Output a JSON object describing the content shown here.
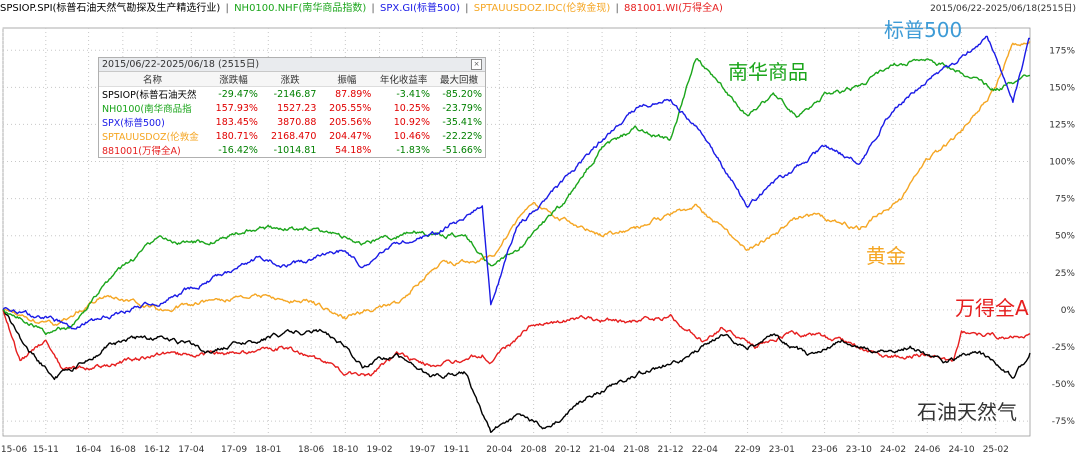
{
  "header": {
    "date_range": "2015/06/22-2025/06/18(2515日)",
    "legend": [
      {
        "text": "SPSIOP.SPI(标普石油天然气勘探及生产精选行业)",
        "color": "#000000"
      },
      {
        "text": "NH0100.NHF(南华商品指数)",
        "color": "#1aa51a"
      },
      {
        "text": "SPX.GI(标普500)",
        "color": "#1a1ae6"
      },
      {
        "text": "SPTAUUSDOZ.IDC(伦敦金现)",
        "color": "#f5a623"
      },
      {
        "text": "881001.WI(万得全A)",
        "color": "#e61e1e"
      }
    ],
    "separator": "|"
  },
  "stats": {
    "title": "2015/06/22-2025/06/18 (2515日)",
    "columns": [
      "名称",
      "涨跌幅",
      "涨跌",
      "振幅",
      "年化收益率",
      "最大回撤"
    ],
    "rows": [
      {
        "name": "SPSIOP(标普石油天然",
        "color": "#000000",
        "values": [
          "-29.47%",
          "-2146.87",
          "87.89%",
          "-3.41%",
          "-85.20%"
        ]
      },
      {
        "name": "NH0100(南华商品指",
        "color": "#1aa51a",
        "values": [
          "157.93%",
          "1527.23",
          "205.55%",
          "10.25%",
          "-23.79%"
        ]
      },
      {
        "name": "SPX(标普500)",
        "color": "#1a1ae6",
        "values": [
          "183.45%",
          "3870.88",
          "205.56%",
          "10.92%",
          "-35.41%"
        ]
      },
      {
        "name": "SPTAUUSDOZ(伦敦金",
        "color": "#f5a623",
        "values": [
          "180.71%",
          "2168.470",
          "204.47%",
          "10.46%",
          "-22.22%"
        ]
      },
      {
        "name": "881001(万得全A)",
        "color": "#e61e1e",
        "values": [
          "-16.42%",
          "-1014.81",
          "54.18%",
          "-1.83%",
          "-51.66%"
        ]
      }
    ]
  },
  "chart_data": {
    "type": "line",
    "y_unit": "%",
    "ylim": [
      -85,
      190
    ],
    "yticks": [
      "-75%",
      "-50%",
      "-25%",
      "0%",
      "25%",
      "50%",
      "75%",
      "100%",
      "125%",
      "150%",
      "175%"
    ],
    "ytick_values": [
      -75,
      -50,
      -25,
      0,
      25,
      50,
      75,
      100,
      125,
      150,
      175
    ],
    "xticks": [
      "15-06",
      "15-11",
      "16-04",
      "16-08",
      "16-12",
      "17-04",
      "17-09",
      "18-01",
      "18-06",
      "18-10",
      "19-02",
      "19-07",
      "19-11",
      "20-04",
      "20-08",
      "20-12",
      "21-04",
      "21-08",
      "21-12",
      "22-04",
      "22-09",
      "23-01",
      "23-06",
      "23-10",
      "24-02",
      "24-06",
      "24-10",
      "25-02"
    ],
    "x_start": "15-06",
    "x_end": "25-06",
    "grid": true,
    "series": [
      {
        "name": "SPSIOP.SPI(标普石油天然气勘探及生产精选行业)",
        "color": "#000000",
        "x": [
          "15-06",
          "15-09",
          "15-12",
          "16-02",
          "16-06",
          "16-10",
          "17-02",
          "17-06",
          "17-10",
          "18-03",
          "18-07",
          "18-10",
          "18-12",
          "19-04",
          "19-08",
          "19-12",
          "20-03",
          "20-06",
          "20-10",
          "21-02",
          "21-06",
          "21-10",
          "22-02",
          "22-06",
          "22-09",
          "22-12",
          "23-04",
          "23-08",
          "23-12",
          "24-04",
          "24-08",
          "24-12",
          "25-04",
          "25-06"
        ],
        "y": [
          0,
          -28,
          -45,
          -40,
          -25,
          -18,
          -20,
          -28,
          -22,
          -16,
          -14,
          -25,
          -38,
          -30,
          -45,
          -42,
          -82,
          -72,
          -80,
          -60,
          -48,
          -40,
          -32,
          -18,
          -25,
          -18,
          -30,
          -20,
          -28,
          -25,
          -35,
          -28,
          -45,
          -29
        ]
      },
      {
        "name": "NH0100.NHF(南华商品指数)",
        "color": "#1aa51a",
        "x": [
          "15-06",
          "15-11",
          "16-02",
          "16-06",
          "16-12",
          "17-06",
          "17-12",
          "18-06",
          "18-12",
          "19-06",
          "19-12",
          "20-03",
          "20-06",
          "20-12",
          "21-04",
          "21-08",
          "21-12",
          "22-03",
          "22-06",
          "22-09",
          "22-12",
          "23-03",
          "23-06",
          "23-10",
          "24-02",
          "24-06",
          "24-10",
          "25-02",
          "25-06"
        ],
        "y": [
          0,
          -15,
          -12,
          18,
          48,
          45,
          55,
          55,
          45,
          52,
          50,
          30,
          40,
          75,
          110,
          122,
          115,
          170,
          150,
          130,
          145,
          130,
          145,
          150,
          165,
          170,
          160,
          148,
          158
        ]
      },
      {
        "name": "SPX.GI(标普500)",
        "color": "#1a1ae6",
        "x": [
          "15-06",
          "15-11",
          "16-02",
          "16-06",
          "16-12",
          "17-06",
          "17-12",
          "18-03",
          "18-10",
          "18-12",
          "19-04",
          "19-09",
          "20-02",
          "20-03",
          "20-06",
          "20-12",
          "21-04",
          "21-08",
          "21-12",
          "22-04",
          "22-09",
          "22-12",
          "23-06",
          "23-10",
          "24-02",
          "24-06",
          "24-10",
          "25-01",
          "25-04",
          "25-06"
        ],
        "y": [
          0,
          -5,
          -12,
          -5,
          5,
          20,
          35,
          30,
          40,
          28,
          45,
          52,
          70,
          5,
          55,
          90,
          115,
          135,
          142,
          115,
          70,
          85,
          110,
          100,
          135,
          155,
          170,
          185,
          140,
          183
        ]
      },
      {
        "name": "SPTAUUSDOZ.IDC(伦敦金现)",
        "color": "#f5a623",
        "x": [
          "15-06",
          "15-12",
          "16-06",
          "16-12",
          "17-06",
          "17-12",
          "18-06",
          "18-10",
          "19-04",
          "19-09",
          "20-03",
          "20-08",
          "20-12",
          "21-04",
          "21-08",
          "22-03",
          "22-09",
          "23-04",
          "23-10",
          "24-03",
          "24-06",
          "24-10",
          "25-02",
          "25-04",
          "25-06"
        ],
        "y": [
          0,
          -10,
          10,
          0,
          5,
          10,
          5,
          -5,
          5,
          30,
          35,
          72,
          60,
          50,
          55,
          70,
          40,
          65,
          55,
          75,
          100,
          120,
          150,
          180,
          181
        ]
      },
      {
        "name": "881001.WI(万得全A)",
        "color": "#e61e1e",
        "x": [
          "15-06",
          "15-08",
          "15-11",
          "16-01",
          "16-06",
          "16-12",
          "17-06",
          "17-12",
          "18-03",
          "18-10",
          "19-01",
          "19-04",
          "19-08",
          "20-02",
          "20-03",
          "20-08",
          "21-02",
          "21-06",
          "21-12",
          "22-04",
          "22-06",
          "22-10",
          "23-02",
          "23-06",
          "23-10",
          "24-01",
          "24-06",
          "24-09",
          "24-10",
          "25-03",
          "25-06"
        ],
        "y": [
          0,
          -35,
          -20,
          -40,
          -38,
          -30,
          -30,
          -28,
          -25,
          -42,
          -45,
          -30,
          -38,
          -30,
          -35,
          -10,
          -5,
          -8,
          -5,
          -22,
          -12,
          -25,
          -15,
          -18,
          -25,
          -32,
          -30,
          -35,
          -15,
          -18,
          -16
        ]
      }
    ]
  },
  "annotations": [
    {
      "text": "标普500",
      "color": "#3d9bd6"
    },
    {
      "text": "南华商品",
      "color": "#1aa51a"
    },
    {
      "text": "黄金",
      "color": "#f5a623"
    },
    {
      "text": "万得全A",
      "color": "#e61e1e"
    },
    {
      "text": "石油天然气",
      "color": "#333333"
    }
  ]
}
